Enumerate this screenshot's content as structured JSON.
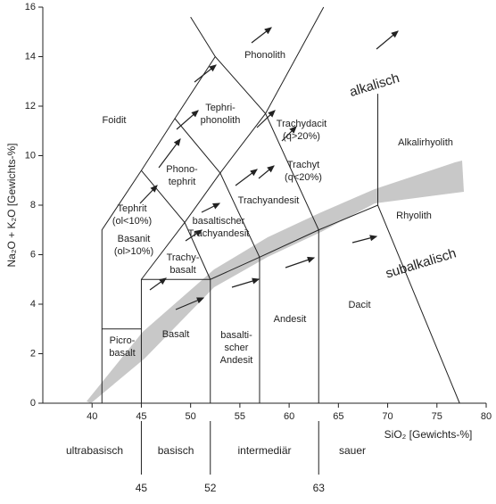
{
  "chart_data": {
    "type": "tas",
    "x_label": "SiO₂ [Gewichts-%]",
    "y_label": "Na₂O + K₂O [Gewichts-%]",
    "xlim": [
      35,
      80
    ],
    "xticks": [
      40,
      45,
      50,
      55,
      60,
      65,
      70,
      75,
      80
    ],
    "ylim": [
      0,
      16
    ],
    "yticks": [
      0,
      2,
      4,
      6,
      8,
      10,
      12,
      14,
      16
    ],
    "boundaries": [
      {
        "x": [
          41,
          41,
          45,
          48.4,
          52.5,
          50
        ],
        "y": [
          0,
          7,
          9.4,
          11.5,
          14,
          15.6
        ]
      },
      {
        "x": [
          41,
          45
        ],
        "y": [
          3,
          3
        ]
      },
      {
        "x": [
          45,
          45,
          52,
          57,
          63,
          69,
          77.3
        ],
        "y": [
          0,
          5,
          5,
          5.9,
          7,
          8,
          0
        ]
      },
      {
        "x": [
          52,
          52
        ],
        "y": [
          0,
          5
        ]
      },
      {
        "x": [
          57,
          57
        ],
        "y": [
          0,
          5.9
        ]
      },
      {
        "x": [
          63,
          63
        ],
        "y": [
          0,
          7
        ]
      },
      {
        "x": [
          69,
          69
        ],
        "y": [
          8,
          12.5
        ]
      },
      {
        "x": [
          45,
          49.4,
          53,
          57.6,
          63.5
        ],
        "y": [
          5,
          7.3,
          9.3,
          11.7,
          16
        ]
      },
      {
        "x": [
          45,
          49.4,
          52
        ],
        "y": [
          9.4,
          7.3,
          5
        ]
      },
      {
        "x": [
          48.4,
          53,
          57
        ],
        "y": [
          11.5,
          9.3,
          5.9
        ]
      },
      {
        "x": [
          52.5,
          57.6,
          63
        ],
        "y": [
          14,
          11.7,
          7
        ]
      }
    ],
    "fields": [
      {
        "lines": [
          "Foidit"
        ]
      },
      {
        "lines": [
          "Phonolith"
        ]
      },
      {
        "lines": [
          "Tephri-",
          "phonolith"
        ]
      },
      {
        "lines": [
          "Trachydacit",
          "(q>20%)"
        ]
      },
      {
        "lines": [
          "Alkalirhyolith"
        ]
      },
      {
        "lines": [
          "Phono-",
          "tephrit"
        ]
      },
      {
        "lines": [
          "Trachyt",
          "(q<20%)"
        ]
      },
      {
        "lines": [
          "Tephrit",
          "(ol<10%)"
        ]
      },
      {
        "lines": [
          "Trachyandesit"
        ]
      },
      {
        "lines": [
          "basaltischer",
          "Trachyandesit"
        ]
      },
      {
        "lines": [
          "Rhyolith"
        ]
      },
      {
        "lines": [
          "Basanit",
          "(ol>10%)"
        ]
      },
      {
        "lines": [
          "Trachy-",
          "basalt"
        ]
      },
      {
        "lines": [
          "Dacit"
        ]
      },
      {
        "lines": [
          "Andesit"
        ]
      },
      {
        "lines": [
          "Basalt"
        ]
      },
      {
        "lines": [
          "Picro-",
          "basalt"
        ]
      },
      {
        "lines": [
          "basalti-",
          "scher",
          "Andesit"
        ]
      }
    ],
    "series_labels": [
      "alkalisch",
      "subalkalisch"
    ],
    "classes": [
      "ultrabasisch",
      "basisch",
      "intermediär",
      "sauer"
    ],
    "class_bounds": [
      45,
      52,
      63
    ]
  }
}
